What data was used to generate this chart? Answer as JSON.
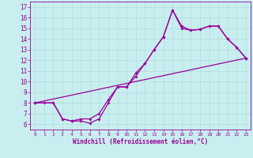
{
  "xlabel": "Windchill (Refroidissement éolien,°C)",
  "bg_color": "#c8eef0",
  "grid_color": "#b0dde0",
  "line_color": "#990099",
  "xlim": [
    -0.5,
    23.5
  ],
  "ylim": [
    5.5,
    17.5
  ],
  "xticks": [
    0,
    1,
    2,
    3,
    4,
    5,
    6,
    7,
    8,
    9,
    10,
    11,
    12,
    13,
    14,
    15,
    16,
    17,
    18,
    19,
    20,
    21,
    22,
    23
  ],
  "yticks": [
    6,
    7,
    8,
    9,
    10,
    11,
    12,
    13,
    14,
    15,
    16,
    17
  ],
  "line1_x": [
    0,
    1,
    2,
    3,
    4,
    5,
    6,
    7,
    8,
    9,
    10,
    11,
    12,
    13,
    14,
    15,
    16,
    17,
    18,
    19,
    20,
    21,
    22,
    23
  ],
  "line1_y": [
    8.0,
    8.0,
    8.0,
    6.5,
    6.3,
    6.3,
    6.1,
    6.5,
    8.0,
    9.5,
    9.5,
    10.5,
    11.7,
    13.0,
    14.2,
    16.7,
    15.0,
    14.8,
    14.9,
    15.2,
    15.2,
    14.0,
    13.2,
    12.2
  ],
  "line2_x": [
    0,
    2,
    3,
    4,
    5,
    6,
    7,
    8,
    9,
    10,
    11,
    12,
    13,
    14,
    15,
    16,
    17,
    18,
    19,
    20,
    21,
    22,
    23
  ],
  "line2_y": [
    8.0,
    8.0,
    6.5,
    6.3,
    6.5,
    6.5,
    7.0,
    8.3,
    9.5,
    9.5,
    10.8,
    11.7,
    13.0,
    14.2,
    16.7,
    15.2,
    14.8,
    14.9,
    15.2,
    15.2,
    14.0,
    13.2,
    12.2
  ],
  "line3_x": [
    0,
    23
  ],
  "line3_y": [
    8.0,
    12.2
  ]
}
